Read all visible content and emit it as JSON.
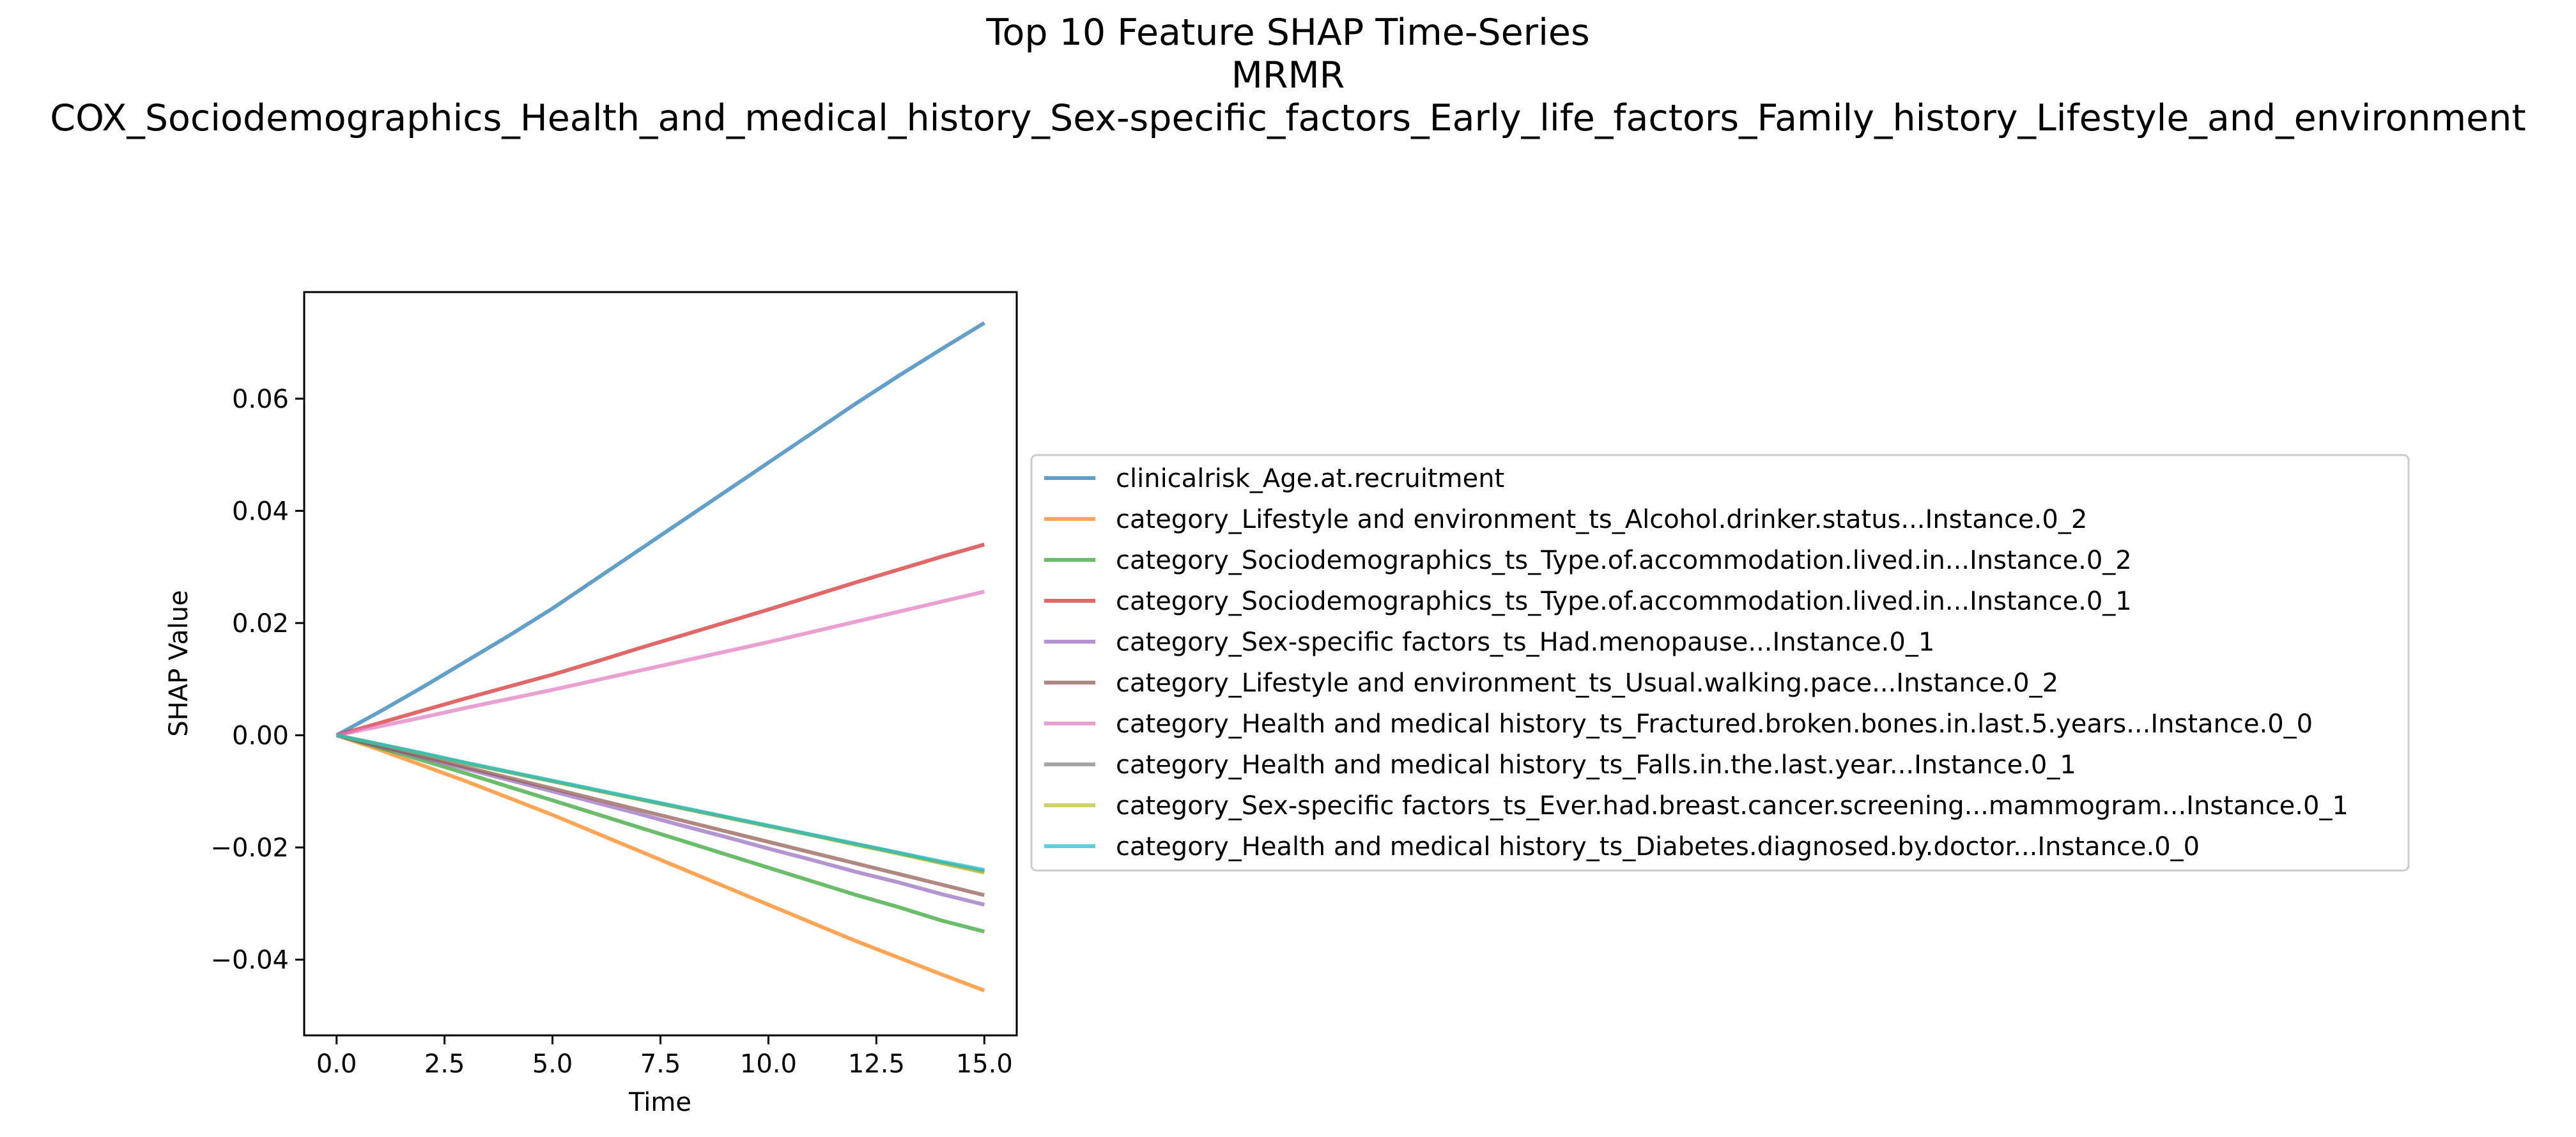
{
  "chart_data": {
    "type": "line",
    "title_lines": [
      "Top 10 Feature SHAP Time-Series",
      "MRMR",
      "COX_Sociodemographics_Health_and_medical_history_Sex-specific_factors_Early_life_factors_Family_history_Lifestyle_and_environment"
    ],
    "xlabel": "Time",
    "ylabel": "SHAP Value",
    "xlim": [
      -0.75,
      15.75
    ],
    "ylim": [
      -0.0535,
      0.079
    ],
    "x_ticks": [
      0,
      2.5,
      5,
      7.5,
      10,
      12.5,
      15
    ],
    "x_tick_labels": [
      "0.0",
      "2.5",
      "5.0",
      "7.5",
      "10.0",
      "12.5",
      "15.0"
    ],
    "y_ticks": [
      -0.04,
      -0.02,
      0,
      0.02,
      0.04,
      0.06
    ],
    "y_tick_labels": [
      "−0.04",
      "−0.02",
      "0.00",
      "0.02",
      "0.04",
      "0.06"
    ],
    "grid": false,
    "legend_placement": "center-left outside plot",
    "x": [
      0,
      1,
      2,
      3,
      4,
      5,
      6,
      7,
      8,
      9,
      10,
      11,
      12,
      13,
      14,
      15
    ],
    "series": [
      {
        "name": "clinicalrisk_Age.at.recruitment",
        "color": "#1f77b4",
        "values": [
          0,
          0.0042,
          0.0086,
          0.0132,
          0.0178,
          0.0226,
          0.0278,
          0.033,
          0.0382,
          0.0434,
          0.0486,
          0.0538,
          0.059,
          0.064,
          0.0688,
          0.0735
        ]
      },
      {
        "name": "category_Lifestyle and environment_ts_Alcohol.drinker.status...Instance.0_2",
        "color": "#ff7f0e",
        "values": [
          0,
          -0.0026,
          -0.0054,
          -0.0082,
          -0.0112,
          -0.0142,
          -0.0174,
          -0.0206,
          -0.0238,
          -0.027,
          -0.0302,
          -0.0334,
          -0.0366,
          -0.0396,
          -0.0426,
          -0.0455
        ]
      },
      {
        "name": "category_Sociodemographics_ts_Type.of.accommodation.lived.in...Instance.0_2",
        "color": "#2ca02c",
        "values": [
          0,
          -0.0022,
          -0.0045,
          -0.0068,
          -0.0092,
          -0.0116,
          -0.014,
          -0.0164,
          -0.0188,
          -0.0212,
          -0.0236,
          -0.026,
          -0.0284,
          -0.0306,
          -0.033,
          -0.035
        ]
      },
      {
        "name": "category_Sociodemographics_ts_Type.of.accommodation.lived.in...Instance.0_1",
        "color": "#d62728",
        "values": [
          0,
          0.0022,
          0.0044,
          0.0066,
          0.0087,
          0.0108,
          0.0131,
          0.0155,
          0.0178,
          0.0201,
          0.0224,
          0.0248,
          0.0272,
          0.0295,
          0.0318,
          0.034
        ]
      },
      {
        "name": "category_Sex-specific factors_ts_Had.menopause...Instance.0_1",
        "color": "#9467bd",
        "values": [
          0,
          -0.002,
          -0.004,
          -0.006,
          -0.008,
          -0.01,
          -0.012,
          -0.014,
          -0.0161,
          -0.0181,
          -0.0202,
          -0.0222,
          -0.0243,
          -0.0262,
          -0.0283,
          -0.0302
        ]
      },
      {
        "name": "category_Lifestyle and environment_ts_Usual.walking.pace...Instance.0_2",
        "color": "#8c564b",
        "values": [
          0,
          -0.0019,
          -0.0038,
          -0.0057,
          -0.0076,
          -0.0095,
          -0.0114,
          -0.0133,
          -0.0152,
          -0.0171,
          -0.019,
          -0.0209,
          -0.0228,
          -0.0247,
          -0.0266,
          -0.0285
        ]
      },
      {
        "name": "category_Health and medical history_ts_Fractured.broken.bones.in.last.5.years...Instance.0_0",
        "color": "#e377c2",
        "values": [
          0,
          0.0016,
          0.0032,
          0.0049,
          0.0065,
          0.0081,
          0.0098,
          0.0115,
          0.0132,
          0.0149,
          0.0166,
          0.0184,
          0.0202,
          0.022,
          0.0238,
          0.0256
        ]
      },
      {
        "name": "category_Health and medical history_ts_Falls.in.the.last.year...Instance.0_1",
        "color": "#7f7f7f",
        "values": [
          0,
          -0.0016,
          -0.0033,
          -0.005,
          -0.0066,
          -0.0082,
          -0.0098,
          -0.0114,
          -0.013,
          -0.0146,
          -0.0162,
          -0.0178,
          -0.0194,
          -0.021,
          -0.0227,
          -0.0243
        ]
      },
      {
        "name": "category_Sex-specific factors_ts_Ever.had.breast.cancer.screening...mammogram...Instance.0_1",
        "color": "#bcbd22",
        "values": [
          0,
          -0.0016,
          -0.0033,
          -0.005,
          -0.0066,
          -0.0082,
          -0.0098,
          -0.0114,
          -0.013,
          -0.0146,
          -0.0162,
          -0.0178,
          -0.0195,
          -0.0211,
          -0.0228,
          -0.0245
        ]
      },
      {
        "name": "category_Health and medical history_ts_Diabetes.diagnosed.by.doctor...Instance.0_0",
        "color": "#17becf",
        "values": [
          0,
          -0.0016,
          -0.0032,
          -0.0049,
          -0.0065,
          -0.0081,
          -0.0097,
          -0.0113,
          -0.0129,
          -0.0145,
          -0.0161,
          -0.0177,
          -0.0193,
          -0.0209,
          -0.0225,
          -0.024
        ]
      }
    ]
  }
}
